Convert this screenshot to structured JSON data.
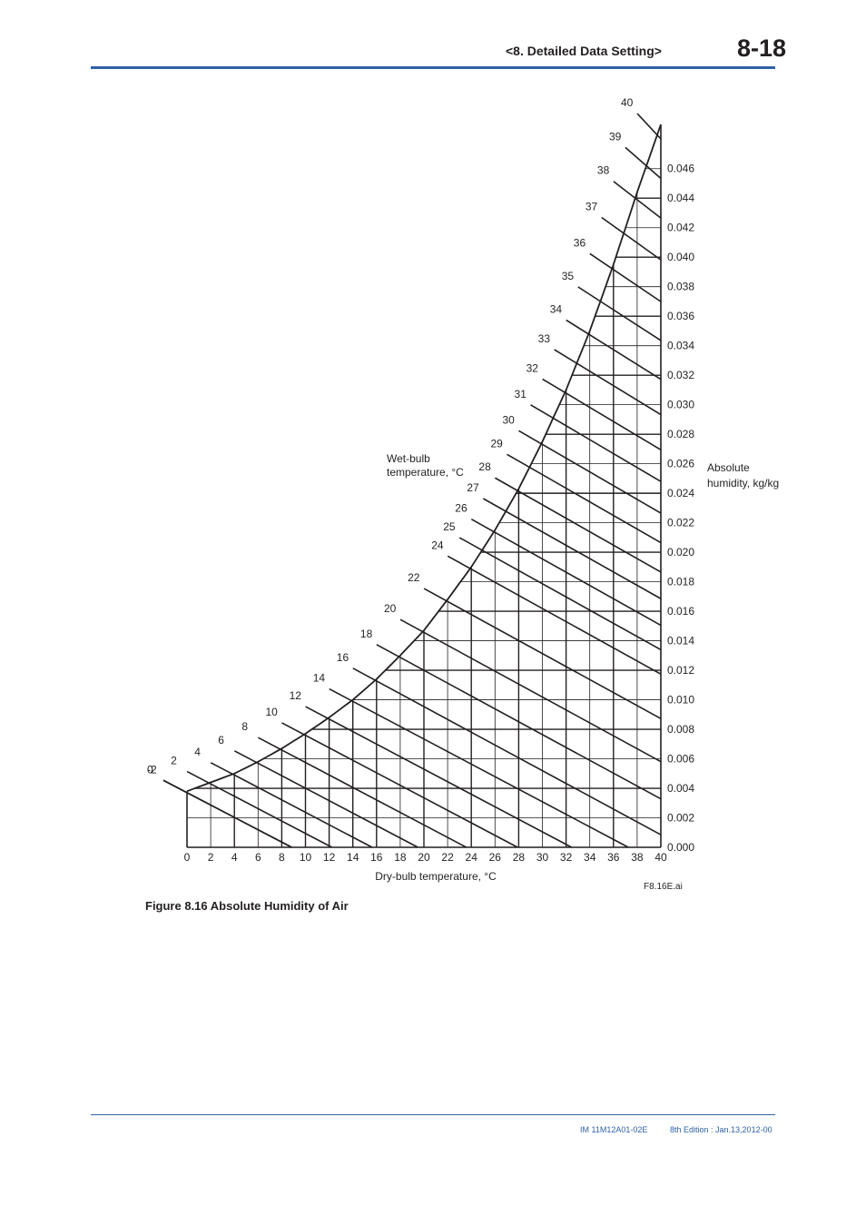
{
  "header": {
    "section": "<8.  Detailed Data Setting>",
    "page_number": "8-18"
  },
  "figure": {
    "caption": "Figure 8.16 Absolute Humidity of Air",
    "file_tag": "F8.16E.ai"
  },
  "footer": {
    "document_id": "IM 11M12A01-02E",
    "edition": "8th Edition : Jan.13,2012-00"
  },
  "chart_data": {
    "type": "line",
    "title": "",
    "xlabel": "Dry-bulb temperature, °C",
    "ylabel": "Absolute\nhumidity, kg/kg",
    "wetbulb_label": "Wet-bulb\ntemperature, °C",
    "xlim": [
      0,
      40
    ],
    "ylim": [
      0,
      0.049
    ],
    "x_ticks": [
      "0",
      "2",
      "4",
      "6",
      "8",
      "10",
      "12",
      "14",
      "16",
      "18",
      "20",
      "22",
      "24",
      "26",
      "28",
      "30",
      "32",
      "34",
      "36",
      "38",
      "40"
    ],
    "y_ticks": [
      "0.000",
      "0.002",
      "0.004",
      "0.006",
      "0.008",
      "0.010",
      "0.012",
      "0.014",
      "0.016",
      "0.018",
      "0.020",
      "0.022",
      "0.024",
      "0.026",
      "0.028",
      "0.030",
      "0.032",
      "0.034",
      "0.036",
      "0.038",
      "0.040",
      "0.042",
      "0.044",
      "0.046"
    ],
    "wetbulb_values": [
      -2,
      0,
      2,
      4,
      6,
      8,
      10,
      12,
      14,
      16,
      18,
      20,
      22,
      24,
      25,
      26,
      27,
      28,
      29,
      30,
      31,
      32,
      33,
      34,
      35,
      36,
      37,
      38,
      39,
      40
    ],
    "wetbulb_labels": [
      "-2",
      "0",
      "2",
      "4",
      "6",
      "8",
      "10",
      "12",
      "14",
      "16",
      "18",
      "20",
      "22",
      "24",
      "25",
      "26",
      "27",
      "28",
      "29",
      "30",
      "31",
      "32",
      "33",
      "34",
      "35",
      "36",
      "37",
      "38",
      "39",
      "40"
    ],
    "saturation_curve": {
      "x": [
        0,
        2,
        4,
        6,
        8,
        10,
        12,
        14,
        16,
        18,
        20,
        22,
        24,
        26,
        28,
        30,
        32,
        34,
        36,
        38,
        40
      ],
      "y": [
        0.0038,
        0.0044,
        0.005,
        0.0058,
        0.0067,
        0.0077,
        0.0088,
        0.01,
        0.0114,
        0.013,
        0.0147,
        0.0168,
        0.019,
        0.0215,
        0.0243,
        0.0275,
        0.031,
        0.035,
        0.0395,
        0.0444,
        0.049
      ]
    },
    "grid": true,
    "legend": "none"
  }
}
